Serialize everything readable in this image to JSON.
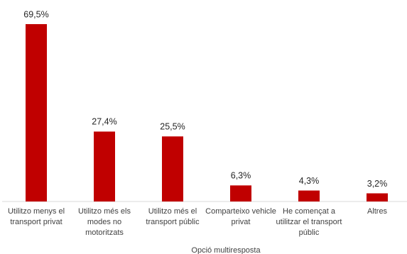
{
  "chart_data": {
    "type": "bar",
    "x_label": "Opció multiresposta",
    "categories": [
      [
        "Utilitzo menys el",
        "transport privat"
      ],
      [
        "Utilitzo més els",
        "modes no",
        "motoritzats"
      ],
      [
        "Utilitzo més el",
        "transport públic"
      ],
      [
        "Comparteixo vehicle",
        "privat"
      ],
      [
        "He començat a",
        "utilitzar el  transport",
        "públic"
      ],
      [
        "Altres"
      ]
    ],
    "values": [
      69.5,
      27.4,
      25.5,
      6.3,
      4.3,
      3.2
    ],
    "value_labels": [
      "69,5%",
      "27,4%",
      "25,5%",
      "6,3%",
      "4,3%",
      "3,2%"
    ],
    "color": "#c00000"
  }
}
